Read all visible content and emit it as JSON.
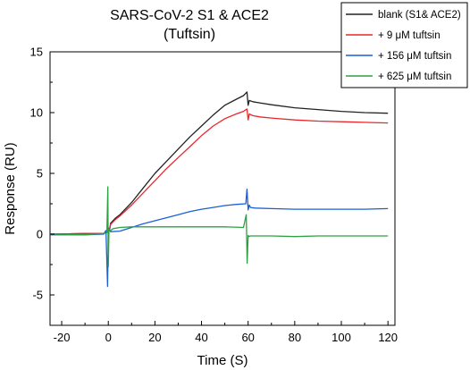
{
  "chart_data": {
    "type": "line",
    "title_line1": "SARS-CoV-2 S1 & ACE2",
    "title_line2": "(Tuftsin)",
    "xlabel": "Time (S)",
    "ylabel": "Response (RU)",
    "xlim": [
      -25,
      123
    ],
    "ylim": [
      -7.5,
      15
    ],
    "xticks": [
      -20,
      0,
      20,
      40,
      60,
      80,
      100,
      120
    ],
    "yticks": [
      -5,
      0,
      5,
      10,
      15
    ],
    "grid": false,
    "legend_position": "top-right",
    "series": [
      {
        "name": "blank (S1& ACE2)",
        "color": "#222222",
        "x": [
          -25,
          -10,
          -2,
          -0.5,
          0.5,
          1,
          3,
          5,
          10,
          15,
          20,
          25,
          30,
          35,
          40,
          45,
          50,
          55,
          58,
          59.5,
          60,
          60.5,
          62,
          65,
          70,
          80,
          90,
          100,
          110,
          120
        ],
        "y": [
          0,
          0.05,
          0.05,
          0.2,
          0.3,
          0.9,
          1.3,
          1.6,
          2.6,
          3.8,
          5.0,
          6.0,
          7.0,
          8.0,
          8.9,
          9.8,
          10.6,
          11.1,
          11.4,
          11.7,
          10.6,
          11.0,
          10.9,
          10.8,
          10.65,
          10.4,
          10.25,
          10.1,
          10.0,
          9.95
        ]
      },
      {
        "name": "+ 9 μM tuftsin",
        "color": "#e8282c",
        "x": [
          -25,
          -10,
          -2,
          -0.5,
          0.5,
          1,
          3,
          5,
          10,
          15,
          20,
          25,
          30,
          35,
          40,
          45,
          50,
          55,
          58,
          59.5,
          60,
          60.5,
          62,
          65,
          70,
          80,
          90,
          100,
          110,
          120
        ],
        "y": [
          0,
          0.05,
          0.05,
          0.2,
          0.3,
          0.8,
          1.2,
          1.5,
          2.4,
          3.4,
          4.4,
          5.4,
          6.3,
          7.2,
          8.1,
          8.9,
          9.5,
          9.9,
          10.1,
          10.3,
          9.4,
          9.9,
          9.75,
          9.65,
          9.55,
          9.4,
          9.3,
          9.25,
          9.2,
          9.15
        ]
      },
      {
        "name": "+ 156 μM tuftsin",
        "color": "#1a5fd6",
        "x": [
          -25,
          -10,
          -2,
          -1,
          -0.3,
          0,
          0.3,
          1,
          5,
          10,
          15,
          20,
          25,
          30,
          35,
          40,
          45,
          50,
          55,
          59,
          59.5,
          60,
          60.5,
          61,
          63,
          70,
          80,
          90,
          100,
          110,
          120
        ],
        "y": [
          -0.05,
          -0.05,
          0,
          0.3,
          -4.3,
          0.3,
          0.5,
          0.2,
          0.25,
          0.55,
          0.85,
          1.1,
          1.35,
          1.6,
          1.85,
          2.05,
          2.2,
          2.35,
          2.45,
          2.5,
          3.7,
          2.0,
          2.4,
          2.2,
          2.15,
          2.1,
          2.05,
          2.05,
          2.05,
          2.05,
          2.1
        ]
      },
      {
        "name": "+ 625 μM tuftsin",
        "color": "#2ea043",
        "x": [
          -25,
          -10,
          -2,
          -0.6,
          -0.2,
          0,
          0.3,
          0.8,
          2,
          5,
          10,
          20,
          30,
          40,
          50,
          58,
          59.2,
          59.6,
          60,
          60.3,
          61,
          63,
          70,
          80,
          90,
          100,
          110,
          120
        ],
        "y": [
          0,
          -0.05,
          0.05,
          0.1,
          3.9,
          -2.7,
          0.4,
          0.25,
          0.45,
          0.55,
          0.6,
          0.6,
          0.6,
          0.6,
          0.6,
          0.55,
          1.6,
          -2.4,
          -0.1,
          -0.2,
          -0.15,
          -0.15,
          -0.15,
          -0.2,
          -0.15,
          -0.15,
          -0.15,
          -0.15
        ]
      }
    ]
  }
}
